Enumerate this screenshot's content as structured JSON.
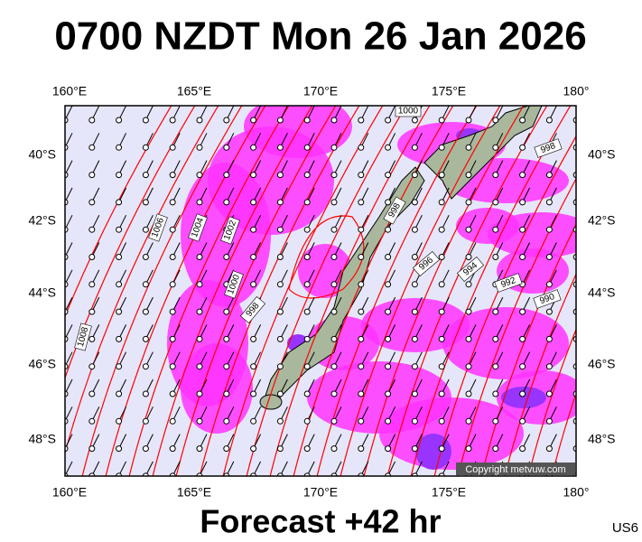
{
  "title": "0700 NZDT Mon 26 Jan 2026",
  "footer": "Forecast +42 hr",
  "code": "US6",
  "copyright": "Copyright metvuw.com",
  "lon_labels": [
    "160°E",
    "165°E",
    "170°E",
    "175°E",
    "180°"
  ],
  "lat_labels": [
    "40°S",
    "42°S",
    "44°S",
    "46°S",
    "48°S"
  ],
  "isobar_labels": [
    "1000",
    "998",
    "998",
    "1006",
    "1004",
    "1002",
    "1000",
    "998",
    "996",
    "994",
    "992",
    "990",
    "1008"
  ]
}
